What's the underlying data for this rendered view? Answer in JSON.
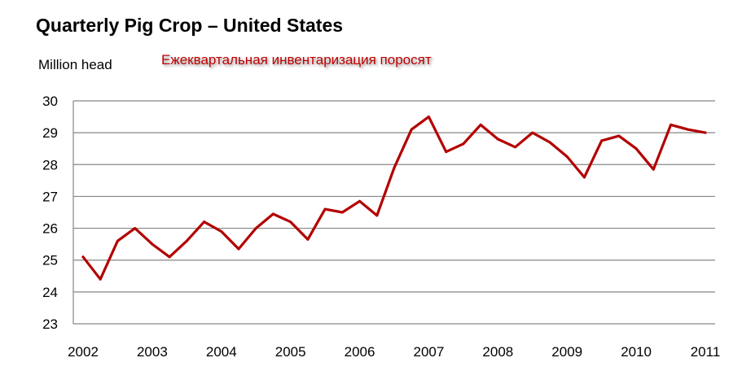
{
  "title": "Quarterly Pig Crop – United States",
  "subtitle_ru": "Ежеквартальная инвентаризация поросят",
  "colors": {
    "line": "#b30000",
    "grid": "#868686",
    "subtitle": "#c00000"
  },
  "chart_data": {
    "type": "line",
    "title": "Quarterly Pig Crop – United States",
    "xlabel": "",
    "ylabel": "Million head",
    "ylim": [
      23,
      30
    ],
    "yticks": [
      "23",
      "24",
      "25",
      "26",
      "27",
      "28",
      "29",
      "30"
    ],
    "xticks": [
      "2002",
      "2003",
      "2004",
      "2005",
      "2006",
      "2007",
      "2008",
      "2009",
      "2010",
      "2011"
    ],
    "xlim": [
      2002,
      2011
    ],
    "grid": true,
    "legend": "none",
    "series": [
      {
        "x": [
          2002.0,
          2002.25,
          2002.5,
          2002.75,
          2003.0,
          2003.25,
          2003.5,
          2003.75,
          2004.0,
          2004.25,
          2004.5,
          2004.75,
          2005.0,
          2005.25,
          2005.5,
          2005.75,
          2006.0,
          2006.25,
          2006.5,
          2006.75,
          2007.0,
          2007.25,
          2007.5,
          2007.75,
          2008.0,
          2008.25,
          2008.5,
          2008.75,
          2009.0,
          2009.25,
          2009.5,
          2009.75,
          2010.0,
          2010.25,
          2010.5,
          2010.75,
          2011.0
        ],
        "values": [
          25.1,
          24.4,
          25.6,
          26.0,
          25.5,
          25.1,
          25.6,
          26.2,
          25.9,
          25.35,
          26.0,
          26.45,
          26.2,
          25.65,
          26.6,
          26.5,
          26.85,
          26.4,
          27.9,
          29.1,
          29.5,
          28.4,
          28.65,
          29.25,
          28.8,
          28.55,
          29.0,
          28.7,
          28.25,
          27.6,
          28.75,
          28.9,
          28.5,
          27.85,
          29.25,
          29.1,
          29.0
        ]
      }
    ]
  }
}
